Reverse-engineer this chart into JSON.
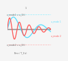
{
  "background_color": "#f5f5f5",
  "line1_color": "#55ddff",
  "line2_color": "#ff5555",
  "dashed_color1": "#88eeff",
  "dashed_color2": "#ffaaaa",
  "axis_color": "#999999",
  "ylabel1": "x_mode1 = u_1(t)",
  "ylabel2": "x_mode2 = u_2(t)",
  "xlabel": "Time / T_1(s)",
  "label1": "u_mode 1",
  "label2": "u_mode 2",
  "xlim": [
    0,
    10.0
  ],
  "ylim": [
    -1.5,
    1.5
  ],
  "amp1": 1.2,
  "amp2": 1.0,
  "omega1": 1.0,
  "omega2": 2.8,
  "decay1": 0.15,
  "decay2": 0.2,
  "dashed_y1": 1.15,
  "dashed_y2": -1.15
}
